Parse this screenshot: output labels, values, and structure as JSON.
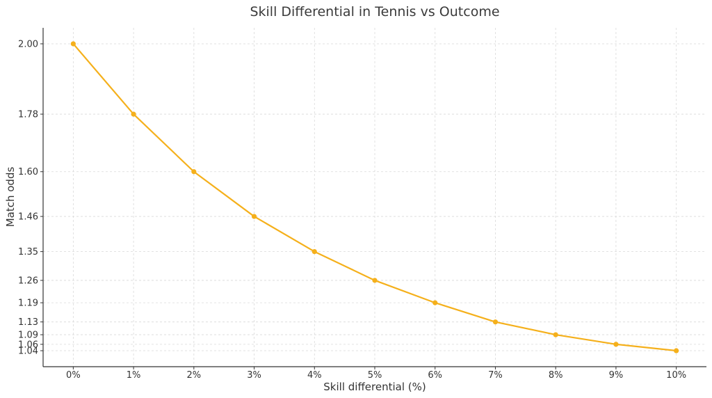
{
  "chart_data": {
    "type": "line",
    "title": "Skill Differential in Tennis vs Outcome",
    "xlabel": "Skill differential (%)",
    "ylabel": "Match odds",
    "x": [
      0,
      1,
      2,
      3,
      4,
      5,
      6,
      7,
      8,
      9,
      10
    ],
    "x_tick_labels": [
      "0%",
      "1%",
      "2%",
      "3%",
      "4%",
      "5%",
      "6%",
      "7%",
      "8%",
      "9%",
      "10%"
    ],
    "series": [
      {
        "values": [
          2.0,
          1.78,
          1.6,
          1.46,
          1.35,
          1.26,
          1.19,
          1.13,
          1.09,
          1.06,
          1.04
        ],
        "color": "#f5b01b"
      }
    ],
    "y_ticks": [
      2.0,
      1.78,
      1.6,
      1.46,
      1.35,
      1.26,
      1.19,
      1.13,
      1.09,
      1.06,
      1.04
    ],
    "y_tick_labels": [
      "2.00",
      "1.78",
      "1.60",
      "1.46",
      "1.35",
      "1.26",
      "1.19",
      "1.13",
      "1.09",
      "1.06",
      "1.04"
    ],
    "xlim": [
      -0.5,
      10.5
    ],
    "ylim": [
      0.99,
      2.05
    ],
    "grid": true,
    "legend": "none"
  }
}
